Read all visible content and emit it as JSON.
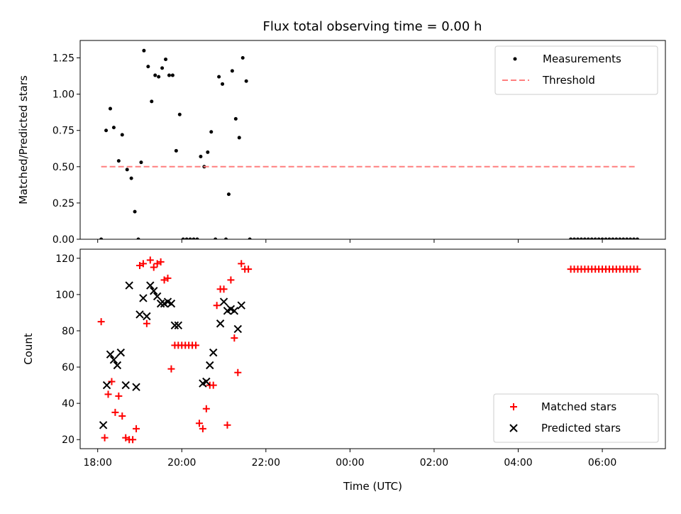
{
  "title": "Flux total observing time = 0.00 h",
  "chart_data": [
    {
      "type": "scatter",
      "ylabel": "Matched/Predicted stars",
      "xlim": [
        "17:35",
        "07:30"
      ],
      "ylim": [
        0,
        1.37
      ],
      "yticks": [
        0.0,
        0.25,
        0.5,
        0.75,
        1.0,
        1.25
      ],
      "ytick_labels": [
        "0.00",
        "0.25",
        "0.50",
        "0.75",
        "1.00",
        "1.25"
      ],
      "grid": false,
      "legend": "top-right",
      "series": [
        {
          "name": "Measurements",
          "style": "dot",
          "color": "#000000",
          "x": [
            "18:05",
            "18:12",
            "18:18",
            "18:23",
            "18:30",
            "18:35",
            "18:42",
            "18:48",
            "18:53",
            "18:58",
            "19:02",
            "19:06",
            "19:12",
            "19:17",
            "19:22",
            "19:27",
            "19:32",
            "19:37",
            "19:42",
            "19:47",
            "19:52",
            "19:57",
            "20:02",
            "20:07",
            "20:12",
            "20:17",
            "20:22",
            "20:27",
            "20:32",
            "20:37",
            "20:42",
            "20:48",
            "20:53",
            "20:58",
            "21:03",
            "21:07",
            "21:12",
            "21:17",
            "21:22",
            "21:27",
            "21:32",
            "21:37",
            "05:15",
            "05:20",
            "05:25",
            "05:30",
            "05:35",
            "05:40",
            "05:45",
            "05:50",
            "05:55",
            "06:00",
            "06:05",
            "06:10",
            "06:15",
            "06:20",
            "06:25",
            "06:30",
            "06:35",
            "06:40",
            "06:45",
            "06:50"
          ],
          "y": [
            0.0,
            0.75,
            0.9,
            0.77,
            0.54,
            0.72,
            0.48,
            0.42,
            0.19,
            0.0,
            0.53,
            1.3,
            1.19,
            0.95,
            1.13,
            1.12,
            1.18,
            1.24,
            1.13,
            1.13,
            0.61,
            0.86,
            0.0,
            0.0,
            0.0,
            0.0,
            0.0,
            0.57,
            0.5,
            0.6,
            0.74,
            0.0,
            1.12,
            1.07,
            0.0,
            0.31,
            1.16,
            0.83,
            0.7,
            1.25,
            1.09,
            0.0,
            0.0,
            0.0,
            0.0,
            0.0,
            0.0,
            0.0,
            0.0,
            0.0,
            0.0,
            0.0,
            0.0,
            0.0,
            0.0,
            0.0,
            0.0,
            0.0,
            0.0,
            0.0,
            0.0,
            0.0
          ]
        },
        {
          "name": "Threshold",
          "style": "dashed",
          "color": "#ff7f7f",
          "x": [
            "18:05",
            "06:50"
          ],
          "y": [
            0.5,
            0.5
          ]
        }
      ]
    },
    {
      "type": "scatter",
      "xlabel": "Time (UTC)",
      "ylabel": "Count",
      "xlim": [
        "17:35",
        "07:30"
      ],
      "ylim": [
        15,
        125
      ],
      "xticks": [
        "18:00",
        "20:00",
        "22:00",
        "00:00",
        "02:00",
        "04:00",
        "06:00"
      ],
      "yticks": [
        20,
        40,
        60,
        80,
        100,
        120
      ],
      "grid": false,
      "legend": "bottom-right",
      "series": [
        {
          "name": "Matched stars",
          "style": "plus",
          "color": "#ff0000",
          "x": [
            "18:05",
            "18:10",
            "18:15",
            "18:20",
            "18:25",
            "18:30",
            "18:35",
            "18:40",
            "18:45",
            "18:50",
            "18:55",
            "19:00",
            "19:05",
            "19:10",
            "19:15",
            "19:20",
            "19:25",
            "19:30",
            "19:35",
            "19:40",
            "19:45",
            "19:50",
            "19:55",
            "20:00",
            "20:05",
            "20:10",
            "20:15",
            "20:20",
            "20:25",
            "20:30",
            "20:35",
            "20:40",
            "20:45",
            "20:50",
            "20:55",
            "21:00",
            "21:05",
            "21:10",
            "21:15",
            "21:20",
            "21:25",
            "21:30",
            "21:35",
            "05:15",
            "05:20",
            "05:25",
            "05:30",
            "05:35",
            "05:40",
            "05:45",
            "05:50",
            "05:55",
            "06:00",
            "06:05",
            "06:10",
            "06:15",
            "06:20",
            "06:25",
            "06:30",
            "06:35",
            "06:40",
            "06:45",
            "06:50"
          ],
          "y": [
            85,
            21,
            45,
            52,
            35,
            44,
            33,
            21,
            20,
            20,
            26,
            116,
            117,
            84,
            119,
            115,
            117,
            118,
            108,
            109,
            59,
            72,
            72,
            72,
            72,
            72,
            72,
            72,
            29,
            26,
            37,
            50,
            50,
            94,
            103,
            103,
            28,
            108,
            76,
            57,
            117,
            114,
            114,
            114,
            114,
            114,
            114,
            114,
            114,
            114,
            114,
            114,
            114,
            114,
            114,
            114,
            114,
            114,
            114,
            114,
            114,
            114,
            114
          ]
        },
        {
          "name": "Predicted stars",
          "style": "x",
          "color": "#000000",
          "x": [
            "18:08",
            "18:13",
            "18:18",
            "18:23",
            "18:28",
            "18:33",
            "18:40",
            "18:45",
            "18:55",
            "19:00",
            "19:05",
            "19:10",
            "19:15",
            "19:20",
            "19:25",
            "19:30",
            "19:35",
            "19:40",
            "19:45",
            "19:50",
            "19:55",
            "20:30",
            "20:35",
            "20:40",
            "20:45",
            "20:55",
            "21:00",
            "21:05",
            "21:10",
            "21:15",
            "21:20",
            "21:25"
          ],
          "y": [
            28,
            50,
            67,
            64,
            61,
            68,
            50,
            105,
            49,
            89,
            98,
            88,
            105,
            102,
            99,
            95,
            95,
            96,
            95,
            83,
            83,
            51,
            52,
            61,
            68,
            84,
            96,
            91,
            92,
            91,
            81,
            94
          ]
        }
      ]
    }
  ]
}
